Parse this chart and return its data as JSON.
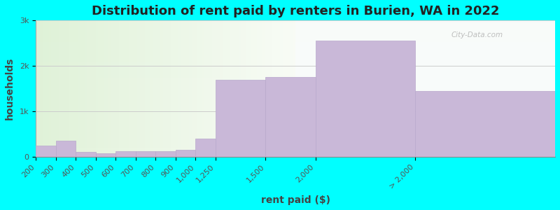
{
  "title": "Distribution of rent paid by renters in Burien, WA in 2022",
  "xlabel": "rent paid ($)",
  "ylabel": "households",
  "background_color": "#00FFFF",
  "bar_color": "#c9b8d8",
  "bar_edge_color": "#b8a8cc",
  "categories": [
    "200",
    "300",
    "400",
    "500",
    "600",
    "700",
    "800",
    "900",
    "1,000",
    "1,250",
    "1,500",
    "2,000",
    "> 2,000"
  ],
  "bin_edges": [
    0,
    1,
    2,
    3,
    4,
    5,
    6,
    7,
    8,
    9,
    11.5,
    14,
    19,
    26
  ],
  "values": [
    250,
    350,
    100,
    80,
    130,
    120,
    130,
    150,
    400,
    1700,
    1750,
    2550,
    1450
  ],
  "ylim": [
    0,
    3000
  ],
  "yticks": [
    0,
    1000,
    2000,
    3000
  ],
  "ytick_labels": [
    "0",
    "1k",
    "2k",
    "3k"
  ],
  "title_fontsize": 13,
  "axis_label_fontsize": 10,
  "tick_fontsize": 8,
  "watermark_text": "City-Data.com"
}
